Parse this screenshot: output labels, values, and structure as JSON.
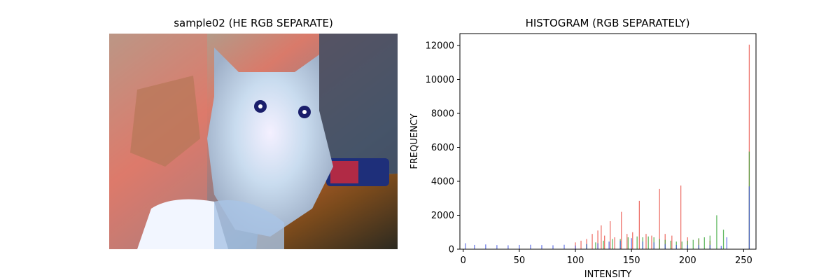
{
  "left_panel": {
    "title": "sample02 (HE RGB SEPARATE)"
  },
  "chart_data": {
    "type": "bar",
    "title": "HISTOGRAM (RGB SEPARATELY)",
    "xlabel": "INTENSITY",
    "ylabel": "FREQUENCY",
    "xlim": [
      -3,
      261
    ],
    "ylim": [
      0,
      12700
    ],
    "xticks": [
      0,
      50,
      100,
      150,
      200,
      250
    ],
    "yticks": [
      0,
      2000,
      4000,
      6000,
      8000,
      10000,
      12000
    ],
    "series": [
      {
        "color": "#e8443a",
        "x": [
          100,
          105,
          110,
          115,
          120,
          123,
          126,
          131,
          135,
          141,
          146,
          151,
          157,
          163,
          168,
          175,
          180,
          186,
          194,
          200,
          210,
          220,
          255
        ],
        "values": [
          400,
          500,
          600,
          900,
          1100,
          1400,
          800,
          1650,
          700,
          2200,
          900,
          1000,
          2850,
          900,
          800,
          3550,
          900,
          800,
          3750,
          700,
          600,
          500,
          12050
        ]
      },
      {
        "color": "#2ca02c",
        "x": [
          110,
          118,
          125,
          133,
          140,
          147,
          155,
          160,
          165,
          170,
          175,
          180,
          185,
          190,
          195,
          200,
          205,
          210,
          215,
          220,
          226,
          232,
          255
        ],
        "values": [
          300,
          400,
          500,
          600,
          600,
          700,
          750,
          700,
          750,
          700,
          600,
          550,
          500,
          450,
          450,
          500,
          550,
          650,
          700,
          800,
          2000,
          1150,
          5750
        ]
      },
      {
        "color": "#3b4fe0",
        "x": [
          2,
          10,
          20,
          30,
          40,
          50,
          60,
          70,
          80,
          90,
          100,
          110,
          120,
          130,
          140,
          150,
          160,
          170,
          180,
          190,
          200,
          210,
          220,
          230,
          235,
          255
        ],
        "values": [
          350,
          250,
          280,
          240,
          230,
          250,
          260,
          240,
          230,
          260,
          220,
          300,
          350,
          450,
          500,
          650,
          450,
          400,
          300,
          250,
          250,
          250,
          250,
          200,
          700,
          3700
        ]
      }
    ]
  }
}
